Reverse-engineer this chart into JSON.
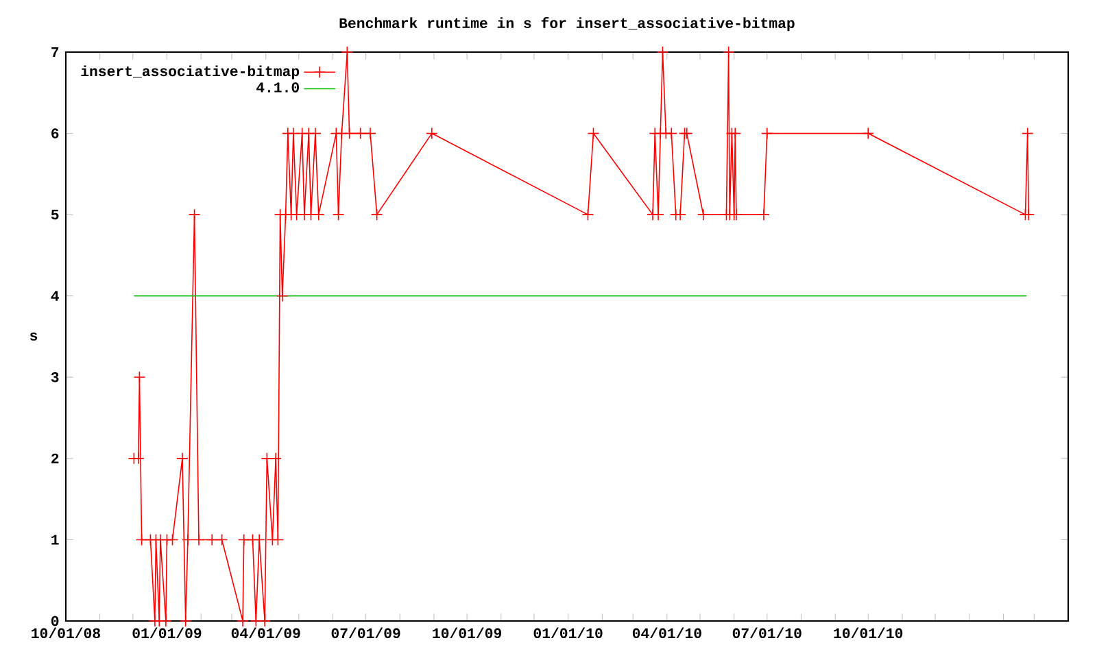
{
  "chart_data": {
    "type": "line",
    "title": "Benchmark runtime in s for insert_associative-bitmap",
    "ylabel": "s",
    "xlim": [
      "2008-10-01",
      "2011-04-01"
    ],
    "ylim": [
      0,
      7
    ],
    "yticks": [
      0,
      1,
      2,
      3,
      4,
      5,
      6,
      7
    ],
    "xticks": [
      {
        "value": "2008-10-01",
        "label": "10/01/08"
      },
      {
        "value": "2008-11-01",
        "label": null
      },
      {
        "value": "2008-12-01",
        "label": null
      },
      {
        "value": "2009-01-01",
        "label": "01/01/09"
      },
      {
        "value": "2009-02-01",
        "label": null
      },
      {
        "value": "2009-03-01",
        "label": null
      },
      {
        "value": "2009-04-01",
        "label": "04/01/09"
      },
      {
        "value": "2009-05-01",
        "label": null
      },
      {
        "value": "2009-06-01",
        "label": null
      },
      {
        "value": "2009-07-01",
        "label": "07/01/09"
      },
      {
        "value": "2009-08-01",
        "label": null
      },
      {
        "value": "2009-09-01",
        "label": null
      },
      {
        "value": "2009-10-01",
        "label": "10/01/09"
      },
      {
        "value": "2009-11-01",
        "label": null
      },
      {
        "value": "2009-12-01",
        "label": null
      },
      {
        "value": "2010-01-01",
        "label": "01/01/10"
      },
      {
        "value": "2010-02-01",
        "label": null
      },
      {
        "value": "2010-03-01",
        "label": null
      },
      {
        "value": "2010-04-01",
        "label": "04/01/10"
      },
      {
        "value": "2010-05-01",
        "label": null
      },
      {
        "value": "2010-06-01",
        "label": null
      },
      {
        "value": "2010-07-01",
        "label": "07/01/10"
      },
      {
        "value": "2010-08-01",
        "label": null
      },
      {
        "value": "2010-09-01",
        "label": null
      },
      {
        "value": "2010-10-01",
        "label": "10/01/10"
      },
      {
        "value": "2010-11-01",
        "label": null
      },
      {
        "value": "2010-12-01",
        "label": null
      },
      {
        "value": "2011-01-01",
        "label": null
      },
      {
        "value": "2011-02-01",
        "label": null
      },
      {
        "value": "2011-03-01",
        "label": null
      },
      {
        "value": "2011-04-01",
        "label": null
      }
    ],
    "grid": false,
    "legend": "top left",
    "series": [
      {
        "name": "insert_associative-bitmap",
        "color": "#ff0000",
        "marker": "cross",
        "x": [
          "2008-12-02",
          "2008-12-06",
          "2008-12-07",
          "2008-12-09",
          "2008-12-17",
          "2008-12-21",
          "2008-12-22",
          "2008-12-25",
          "2008-12-26",
          "2008-12-31",
          "2009-01-01",
          "2009-01-06",
          "2009-01-15",
          "2009-01-18",
          "2009-01-20",
          "2009-01-26",
          "2009-01-30",
          "2009-02-11",
          "2009-02-20",
          "2009-03-11",
          "2009-03-12",
          "2009-03-20",
          "2009-03-23",
          "2009-03-26",
          "2009-03-31",
          "2009-04-02",
          "2009-04-07",
          "2009-04-10",
          "2009-04-12",
          "2009-04-14",
          "2009-04-16",
          "2009-04-19",
          "2009-04-21",
          "2009-04-24",
          "2009-04-26",
          "2009-04-29",
          "2009-05-04",
          "2009-05-06",
          "2009-05-10",
          "2009-05-12",
          "2009-05-16",
          "2009-05-19",
          "2009-06-04",
          "2009-06-06",
          "2009-06-09",
          "2009-06-14",
          "2009-06-16",
          "2009-06-26",
          "2009-07-05",
          "2009-07-11",
          "2009-08-30",
          "2010-01-19",
          "2010-01-24",
          "2010-03-19",
          "2010-03-21",
          "2010-03-24",
          "2010-03-26",
          "2010-03-28",
          "2010-03-31",
          "2010-04-05",
          "2010-04-09",
          "2010-04-13",
          "2010-04-17",
          "2010-04-19",
          "2010-05-04",
          "2010-05-25",
          "2010-05-27",
          "2010-05-28",
          "2010-05-30",
          "2010-06-01",
          "2010-06-02",
          "2010-06-03",
          "2010-06-28",
          "2010-07-01",
          "2010-10-01",
          "2011-02-21",
          "2011-02-23",
          "2011-02-24"
        ],
        "values": [
          2,
          2,
          3,
          1,
          1,
          0,
          1,
          0,
          1,
          0,
          1,
          1,
          2,
          0,
          1,
          5,
          1,
          1,
          1,
          0,
          1,
          1,
          0,
          1,
          0,
          2,
          1,
          2,
          1,
          5,
          4,
          5,
          6,
          5,
          6,
          5,
          6,
          5,
          6,
          5,
          6,
          5,
          6,
          5,
          6,
          7,
          6,
          6,
          6,
          5,
          6,
          5,
          6,
          5,
          6,
          5,
          6,
          7,
          6,
          6,
          5,
          5,
          6,
          6,
          5,
          5,
          7,
          5,
          6,
          5,
          6,
          5,
          5,
          6,
          6,
          5,
          6,
          5
        ]
      },
      {
        "name": "4.1.0",
        "color": "#00c000",
        "marker": "none",
        "x": [
          "2008-12-02",
          "2011-02-22"
        ],
        "values": [
          4,
          4
        ]
      }
    ]
  }
}
